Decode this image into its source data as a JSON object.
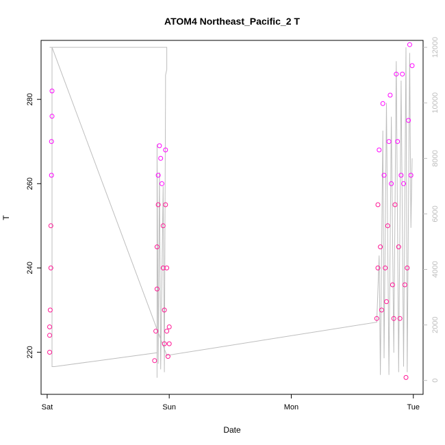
{
  "chart_data": {
    "type": "scatter",
    "title": "ATOM4 Northeast_Pacific_2 T",
    "xlabel": "Date",
    "ylabel": "T",
    "x_ticks": [
      "Sat",
      "Sun",
      "Mon",
      "Tue"
    ],
    "x_range_days": [
      -0.05,
      3.08
    ],
    "ylim": [
      210,
      294
    ],
    "y_ticks": [
      220,
      240,
      260,
      280
    ],
    "y2_range": [
      -500,
      12250
    ],
    "y2_ticks": [
      0,
      2000,
      4000,
      6000,
      8000,
      10000,
      12000
    ],
    "y2_tick_labels": [
      "0",
      "2000",
      "4000",
      "6000",
      "8000",
      "10000",
      "12000"
    ],
    "grid": false,
    "legend": "none",
    "colors": {
      "T_low": "#ff1493",
      "T_high": "#ff00ff",
      "altitude_line": "#bdbdbd"
    },
    "series": [
      {
        "var": "T",
        "marker": "open-circle",
        "points": [
          [
            0.02,
            220.0
          ],
          [
            0.02,
            224.0
          ],
          [
            0.02,
            226.0
          ],
          [
            0.025,
            230.0
          ],
          [
            0.03,
            240.0
          ],
          [
            0.03,
            250.0
          ],
          [
            0.035,
            262.0
          ],
          [
            0.035,
            270.0
          ],
          [
            0.04,
            276.0
          ],
          [
            0.04,
            282.0
          ],
          [
            0.88,
            218.0
          ],
          [
            0.89,
            225.0
          ],
          [
            0.9,
            235.0
          ],
          [
            0.9,
            245.0
          ],
          [
            0.91,
            255.0
          ],
          [
            0.91,
            262.0
          ],
          [
            0.92,
            269.0
          ],
          [
            0.93,
            266.0
          ],
          [
            0.94,
            260.0
          ],
          [
            0.95,
            250.0
          ],
          [
            0.95,
            240.0
          ],
          [
            0.96,
            230.0
          ],
          [
            0.96,
            222.0
          ],
          [
            0.97,
            268.0
          ],
          [
            0.97,
            255.0
          ],
          [
            0.98,
            240.0
          ],
          [
            0.98,
            225.0
          ],
          [
            0.99,
            219.0
          ],
          [
            1.0,
            222.0
          ],
          [
            1.0,
            226.0
          ],
          [
            2.7,
            228.0
          ],
          [
            2.71,
            240.0
          ],
          [
            2.71,
            255.0
          ],
          [
            2.72,
            268.0
          ],
          [
            2.73,
            245.0
          ],
          [
            2.74,
            230.0
          ],
          [
            2.75,
            279.0
          ],
          [
            2.76,
            262.0
          ],
          [
            2.77,
            240.0
          ],
          [
            2.78,
            232.0
          ],
          [
            2.79,
            250.0
          ],
          [
            2.8,
            270.0
          ],
          [
            2.81,
            281.0
          ],
          [
            2.82,
            260.0
          ],
          [
            2.83,
            236.0
          ],
          [
            2.84,
            228.0
          ],
          [
            2.85,
            255.0
          ],
          [
            2.86,
            286.0
          ],
          [
            2.87,
            270.0
          ],
          [
            2.88,
            245.0
          ],
          [
            2.89,
            228.0
          ],
          [
            2.9,
            262.0
          ],
          [
            2.91,
            286.0
          ],
          [
            2.92,
            260.0
          ],
          [
            2.93,
            236.0
          ],
          [
            2.94,
            214.0
          ],
          [
            2.95,
            240.0
          ],
          [
            2.96,
            275.0
          ],
          [
            2.97,
            293.0
          ],
          [
            2.98,
            262.0
          ],
          [
            2.99,
            288.0
          ]
        ]
      },
      {
        "var": "altitude",
        "axis": "right",
        "type": "line",
        "points": [
          [
            0.02,
            12000
          ],
          [
            0.04,
            12000
          ],
          [
            0.04,
            500
          ],
          [
            0.06,
            500
          ],
          [
            0.9,
            1000
          ],
          [
            0.9,
            100
          ],
          [
            0.9,
            8500
          ],
          [
            0.91,
            600
          ],
          [
            0.92,
            7500
          ],
          [
            0.93,
            400
          ],
          [
            0.95,
            7000
          ],
          [
            0.96,
            300
          ],
          [
            0.97,
            10500
          ],
          [
            0.97,
            11000
          ],
          [
            0.98,
            11200
          ],
          [
            0.98,
            12000
          ],
          [
            0.04,
            12000
          ],
          [
            0.98,
            900
          ],
          [
            2.7,
            2100
          ],
          [
            2.72,
            4500
          ],
          [
            2.73,
            200
          ],
          [
            2.75,
            9000
          ],
          [
            2.76,
            800
          ],
          [
            2.78,
            10000
          ],
          [
            2.8,
            200
          ],
          [
            2.82,
            9500
          ],
          [
            2.84,
            1000
          ],
          [
            2.86,
            11500
          ],
          [
            2.88,
            300
          ],
          [
            2.9,
            10800
          ],
          [
            2.92,
            500
          ],
          [
            2.94,
            12000
          ],
          [
            2.95,
            300
          ],
          [
            2.97,
            11800
          ],
          [
            2.98,
            5500
          ],
          [
            2.99,
            8000
          ]
        ]
      }
    ]
  }
}
